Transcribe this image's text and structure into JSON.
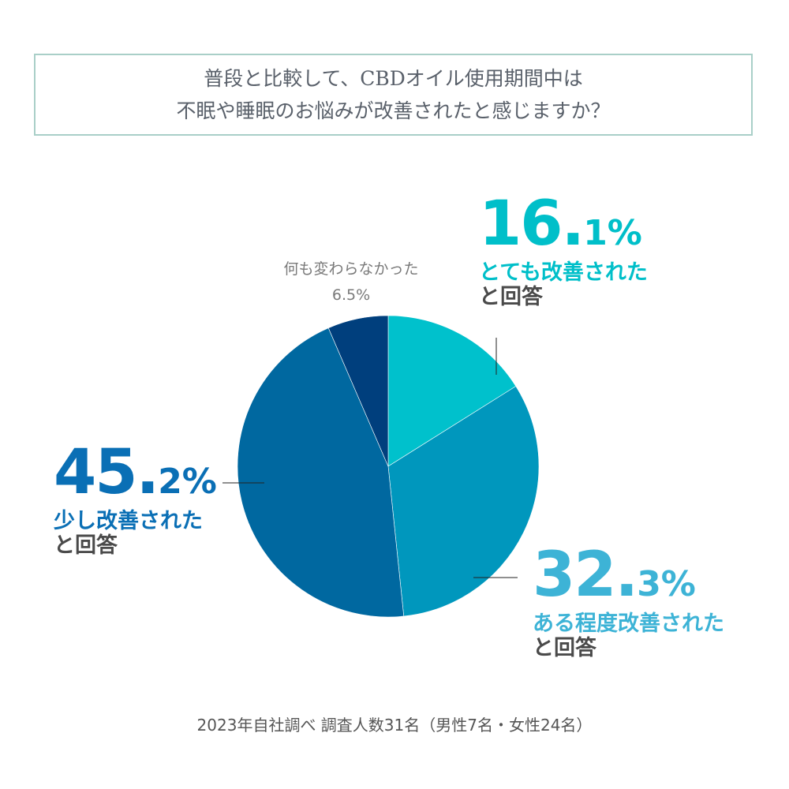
{
  "title": {
    "line1": "普段と比較して、CBDオイル使用期間中は",
    "line2": "不眠や睡眠のお悩みが改善されたと感じますか？"
  },
  "chart_data": {
    "type": "pie",
    "start": "top, clockwise",
    "slices": [
      {
        "label": "とても改善された",
        "value": 16.1,
        "big": "16.",
        "small": "1%",
        "answer": "と回答",
        "color": "#00c1cc",
        "text_color": "#00bfc9"
      },
      {
        "label": "ある程度改善された",
        "value": 32.3,
        "big": "32.",
        "small": "3%",
        "answer": "と回答",
        "color": "#0097bd",
        "text_color": "#3db3d6"
      },
      {
        "label": "少し改善された",
        "value": 45.2,
        "big": "45.",
        "small": "2%",
        "answer": "と回答",
        "color": "#0068a0",
        "text_color": "#0a6fb5"
      },
      {
        "label": "何も変わらなかった",
        "value": 6.5,
        "pct": "6.5%",
        "color": "#003f7d"
      }
    ]
  },
  "note": "2023年自社調べ 調査人数31名（男性7名・女性24名）"
}
